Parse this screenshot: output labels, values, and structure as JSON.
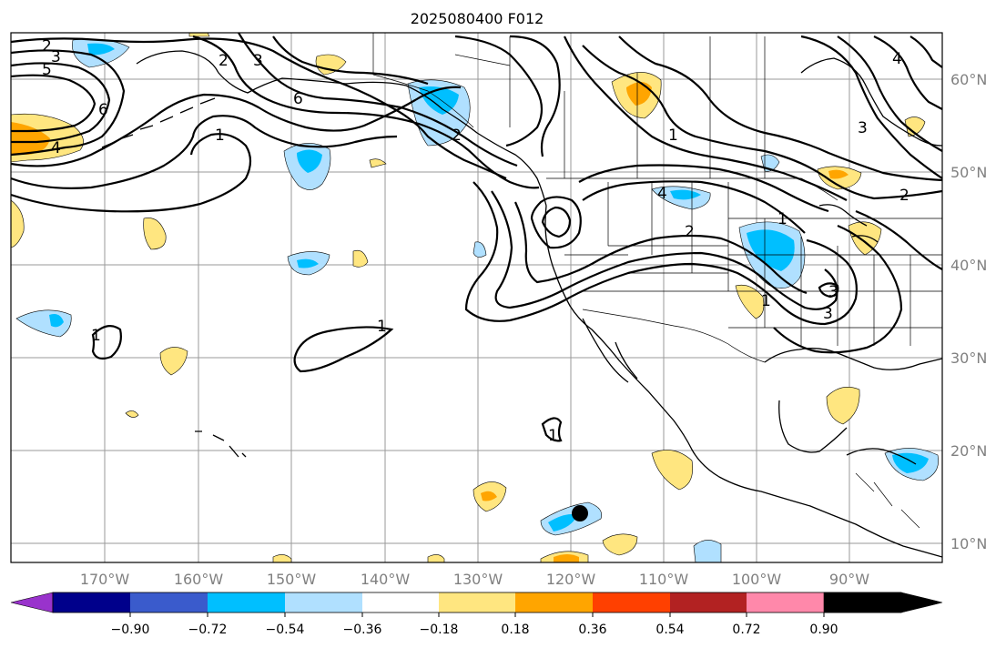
{
  "title": "2025080400 F012",
  "x_ticks": [
    "170°W",
    "160°W",
    "150°W",
    "140°W",
    "130°W",
    "120°W",
    "110°W",
    "100°W",
    "90°W"
  ],
  "y_ticks": [
    "60°N",
    "50°N",
    "40°N",
    "30°N",
    "20°N",
    "10°N"
  ],
  "colorbar": {
    "labels": [
      "−0.90",
      "−0.72",
      "−0.54",
      "−0.36",
      "−0.18",
      "0.18",
      "0.36",
      "0.54",
      "0.72",
      "0.90"
    ],
    "colors": [
      "#9933cc",
      "#00008b",
      "#3a5bcc",
      "#00bfff",
      "#b0e0ff",
      "#ffffff",
      "#ffe680",
      "#ffa500",
      "#ff4000",
      "#b22222",
      "#ff88aa"
    ]
  },
  "contour_labels": [
    "2",
    "3",
    "5",
    "6",
    "4",
    "2",
    "3",
    "6",
    "1",
    "2",
    "1",
    "4",
    "2",
    "1",
    "3",
    "2",
    "1",
    "1",
    "3",
    "1",
    "1",
    "3",
    "4"
  ],
  "colors": {
    "neg_light": "#b0e0ff",
    "neg_mid": "#00bfff",
    "pos_light": "#ffe680",
    "pos_mid": "#ffa500"
  }
}
